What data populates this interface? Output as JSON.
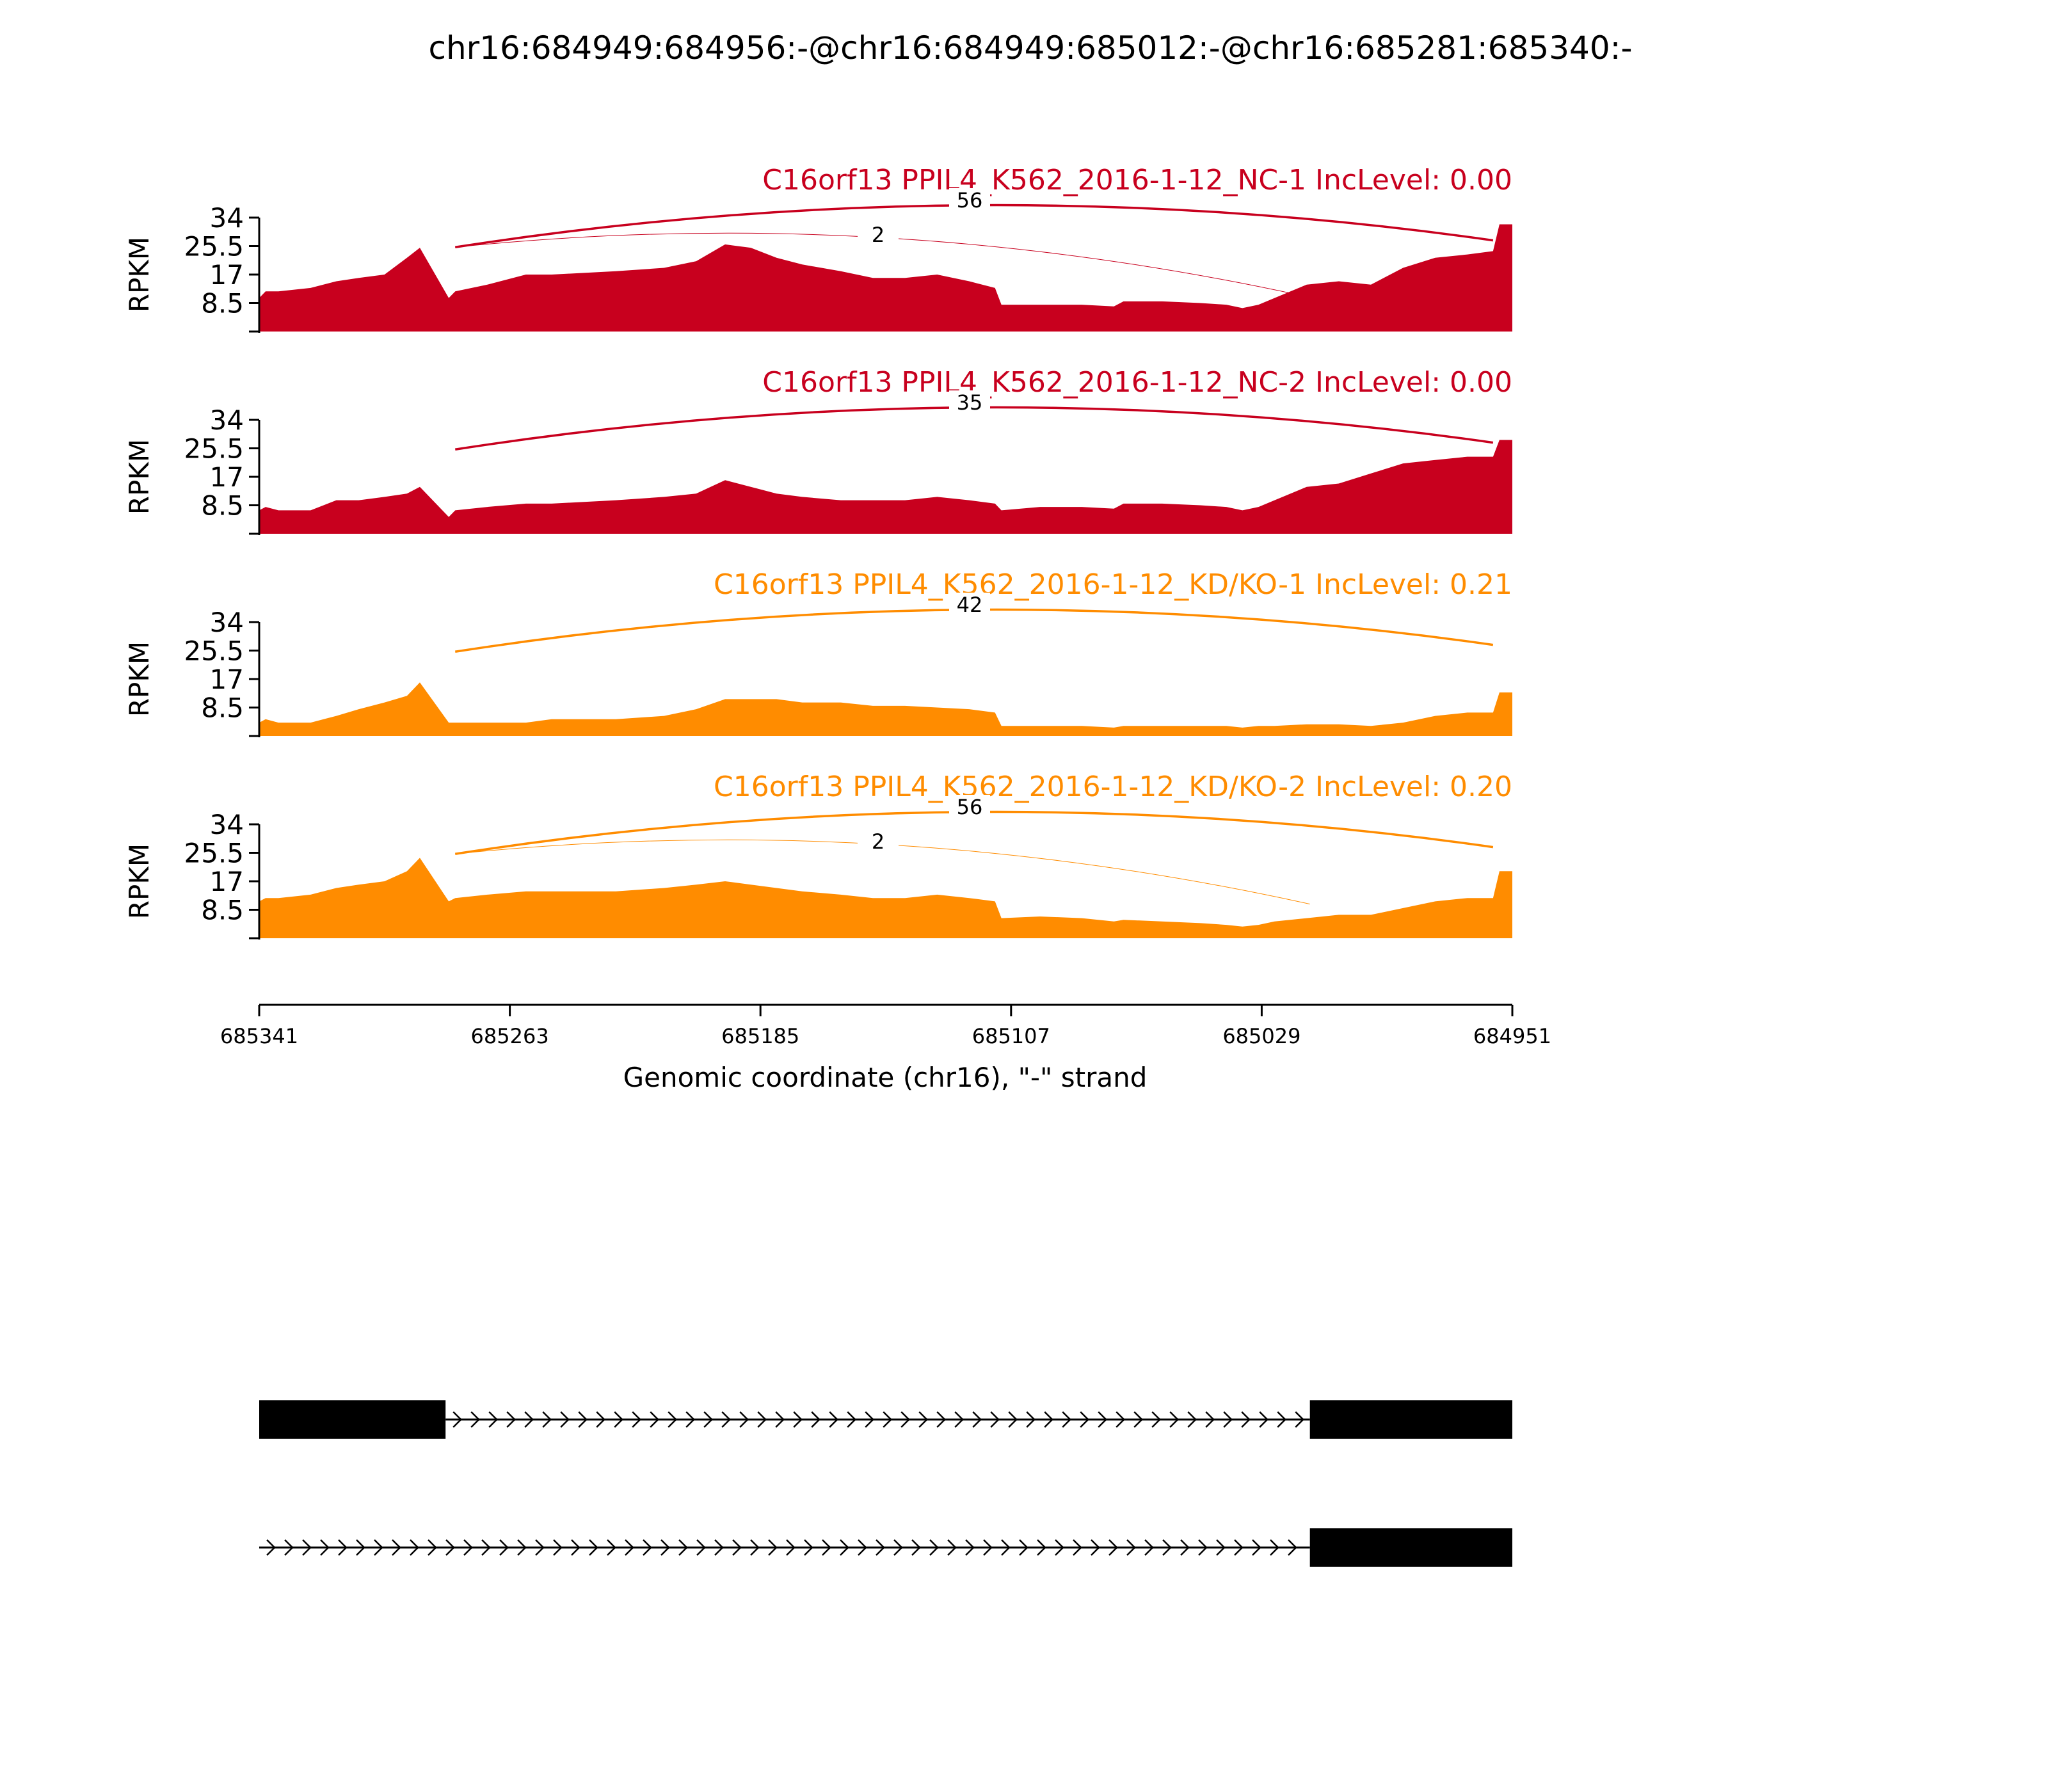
{
  "chart_data": {
    "type": "area",
    "title": "chr16:684949:684956:-@chr16:684949:685012:-@chr16:685281:685340:-",
    "xlabel": "Genomic coordinate (chr16), \"-\" strand",
    "ylabel": "RPKM",
    "x_domain": [
      685341,
      684951
    ],
    "x_ticks": [
      "685341",
      "685263",
      "685185",
      "685107",
      "685029",
      "684951"
    ],
    "ylim": [
      0,
      34
    ],
    "y_ticks": [
      "34",
      "25.5",
      "17",
      "8.5"
    ],
    "colors": {
      "nc": "#c8001e",
      "kd": "#ff8c00",
      "gene": "#000000"
    },
    "tracks": [
      {
        "name": "C16orf13 PPIL4_K562_2016-1-12_NC-1 IncLevel: 0.00",
        "color": "#c8001e",
        "x": [
          685341,
          685339,
          685335,
          685325,
          685317,
          685310,
          685302,
          685295,
          685291,
          685282,
          685280,
          685270,
          685258,
          685250,
          685230,
          685215,
          685205,
          685196,
          685188,
          685180,
          685172,
          685160,
          685150,
          685140,
          685130,
          685120,
          685112,
          685110,
          685098,
          685085,
          685075,
          685072,
          685060,
          685048,
          685040,
          685035,
          685030,
          685025,
          685015,
          685005,
          684995,
          684985,
          684975,
          684965,
          684957,
          684955,
          684951
        ],
        "y": [
          10,
          12,
          12,
          13,
          15,
          16,
          17,
          22,
          25,
          10,
          12,
          14,
          17,
          17,
          18,
          19,
          21,
          26,
          25,
          22,
          20,
          18,
          16,
          16,
          17,
          15,
          13,
          8,
          8,
          8,
          7.5,
          9,
          9,
          8.5,
          8,
          7,
          8,
          10,
          14,
          15,
          14,
          19,
          22,
          23,
          24,
          32,
          32
        ],
        "junctions": [
          {
            "count": "56",
            "from": 685280,
            "to": 684957
          },
          {
            "count": "2",
            "from": 685280,
            "to": 685014
          }
        ]
      },
      {
        "name": "C16orf13 PPIL4_K562_2016-1-12_NC-2 IncLevel: 0.00",
        "color": "#c8001e",
        "x": [
          685341,
          685339,
          685335,
          685325,
          685317,
          685310,
          685302,
          685295,
          685291,
          685282,
          685280,
          685270,
          685258,
          685250,
          685230,
          685215,
          685205,
          685196,
          685188,
          685180,
          685172,
          685160,
          685150,
          685140,
          685130,
          685120,
          685112,
          685110,
          685098,
          685085,
          685075,
          685072,
          685060,
          685048,
          685040,
          685035,
          685030,
          685025,
          685015,
          685005,
          684995,
          684985,
          684975,
          684965,
          684957,
          684955,
          684951
        ],
        "y": [
          7,
          8,
          7,
          7,
          10,
          10,
          11,
          12,
          14,
          5,
          7,
          8,
          9,
          9,
          10,
          11,
          12,
          16,
          14,
          12,
          11,
          10,
          10,
          10,
          11,
          10,
          9,
          7,
          8,
          8,
          7.5,
          9,
          9,
          8.5,
          8,
          7,
          8,
          10,
          14,
          15,
          18,
          21,
          22,
          23,
          23,
          28,
          28
        ],
        "junctions": [
          {
            "count": "35",
            "from": 685280,
            "to": 684957
          }
        ]
      },
      {
        "name": "C16orf13 PPIL4_K562_2016-1-12_KD/KO-1 IncLevel: 0.21",
        "color": "#ff8c00",
        "x": [
          685341,
          685339,
          685335,
          685325,
          685317,
          685310,
          685302,
          685295,
          685291,
          685282,
          685280,
          685270,
          685258,
          685250,
          685230,
          685215,
          685205,
          685196,
          685188,
          685180,
          685172,
          685160,
          685150,
          685140,
          685130,
          685120,
          685112,
          685110,
          685098,
          685085,
          685075,
          685072,
          685060,
          685048,
          685040,
          685035,
          685030,
          685025,
          685015,
          685005,
          684995,
          684985,
          684975,
          684965,
          684957,
          684955,
          684951
        ],
        "y": [
          4,
          5,
          4,
          4,
          6,
          8,
          10,
          12,
          16,
          4,
          4,
          4,
          4,
          5,
          5,
          6,
          8,
          11,
          11,
          11,
          10,
          10,
          9,
          9,
          8.5,
          8,
          7,
          3,
          3,
          3,
          2.5,
          3,
          3,
          3,
          3,
          2.5,
          3,
          3,
          3.5,
          3.5,
          3,
          4,
          6,
          7,
          7,
          13,
          13
        ],
        "junctions": [
          {
            "count": "42",
            "from": 685280,
            "to": 684957
          }
        ]
      },
      {
        "name": "C16orf13 PPIL4_K562_2016-1-12_KD/KO-2 IncLevel: 0.20",
        "color": "#ff8c00",
        "x": [
          685341,
          685339,
          685335,
          685325,
          685317,
          685310,
          685302,
          685295,
          685291,
          685282,
          685280,
          685270,
          685258,
          685250,
          685230,
          685215,
          685205,
          685196,
          685188,
          685180,
          685172,
          685160,
          685150,
          685140,
          685130,
          685120,
          685112,
          685110,
          685098,
          685085,
          685075,
          685072,
          685060,
          685048,
          685040,
          685035,
          685030,
          685025,
          685015,
          685005,
          684995,
          684985,
          684975,
          684965,
          684957,
          684955,
          684951
        ],
        "y": [
          11,
          12,
          12,
          13,
          15,
          16,
          17,
          20,
          24,
          11,
          12,
          13,
          14,
          14,
          14,
          15,
          16,
          17,
          16,
          15,
          14,
          13,
          12,
          12,
          13,
          12,
          11,
          6,
          6.5,
          6,
          5,
          5.5,
          5,
          4.5,
          4,
          3.5,
          4,
          5,
          6,
          7,
          7,
          9,
          11,
          12,
          12,
          20,
          20
        ],
        "junctions": [
          {
            "count": "56",
            "from": 685280,
            "to": 684957
          },
          {
            "count": "2",
            "from": 685280,
            "to": 685014
          }
        ]
      }
    ],
    "transcripts": [
      {
        "exons": [
          [
            685341,
            685283
          ],
          [
            685014,
            684951
          ]
        ]
      },
      {
        "exons": [
          [
            685014,
            684951
          ]
        ]
      }
    ]
  }
}
